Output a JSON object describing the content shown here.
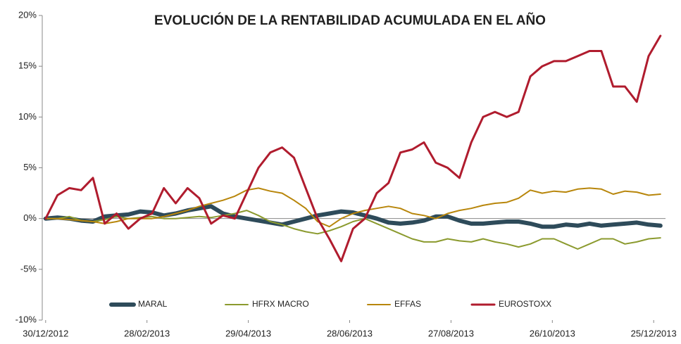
{
  "chart_data": {
    "type": "line",
    "title": "EVOLUCIÓN DE LA RENTABILIDAD ACUMULADA EN EL AÑO",
    "x": [
      "2012-12-30",
      "2013-01-06",
      "2013-01-13",
      "2013-01-20",
      "2013-01-27",
      "2013-02-03",
      "2013-02-10",
      "2013-02-17",
      "2013-02-24",
      "2013-03-03",
      "2013-03-10",
      "2013-03-17",
      "2013-03-24",
      "2013-03-31",
      "2013-04-07",
      "2013-04-14",
      "2013-04-21",
      "2013-04-28",
      "2013-05-05",
      "2013-05-12",
      "2013-05-19",
      "2013-05-26",
      "2013-06-02",
      "2013-06-09",
      "2013-06-16",
      "2013-06-23",
      "2013-06-30",
      "2013-07-07",
      "2013-07-14",
      "2013-07-21",
      "2013-07-28",
      "2013-08-04",
      "2013-08-11",
      "2013-08-18",
      "2013-08-25",
      "2013-09-01",
      "2013-09-08",
      "2013-09-15",
      "2013-09-22",
      "2013-09-29",
      "2013-10-06",
      "2013-10-13",
      "2013-10-20",
      "2013-10-27",
      "2013-11-03",
      "2013-11-10",
      "2013-11-17",
      "2013-11-24",
      "2013-12-01",
      "2013-12-08",
      "2013-12-15",
      "2013-12-22",
      "2013-12-29"
    ],
    "series": [
      {
        "name": "MARAL",
        "color": "#2e4b5a",
        "width": 6,
        "values": [
          0,
          0.1,
          0,
          -0.2,
          -0.3,
          0.2,
          0.3,
          0.4,
          0.7,
          0.6,
          0.3,
          0.5,
          0.8,
          1.0,
          1.2,
          0.5,
          0.2,
          0,
          -0.2,
          -0.4,
          -0.6,
          -0.3,
          0,
          0.3,
          0.5,
          0.7,
          0.6,
          0.3,
          0,
          -0.4,
          -0.5,
          -0.4,
          -0.2,
          0.2,
          0.2,
          -0.2,
          -0.5,
          -0.5,
          -0.4,
          -0.3,
          -0.3,
          -0.5,
          -0.8,
          -0.8,
          -0.6,
          -0.7,
          -0.5,
          -0.7,
          -0.6,
          -0.5,
          -0.4,
          -0.6,
          -0.7
        ]
      },
      {
        "name": "HFRX MACRO",
        "color": "#8b9a2e",
        "width": 2,
        "values": [
          0,
          0,
          0.2,
          -0.2,
          -0.3,
          -0.1,
          0.2,
          0,
          0.1,
          0.2,
          0,
          0,
          0.1,
          0.2,
          0.1,
          0.3,
          0.5,
          0.8,
          0.3,
          -0.3,
          -0.6,
          -1.0,
          -1.3,
          -1.5,
          -1.2,
          -0.8,
          -0.3,
          0,
          -0.5,
          -1.0,
          -1.5,
          -2.0,
          -2.3,
          -2.3,
          -2.0,
          -2.2,
          -2.3,
          -2.0,
          -2.3,
          -2.5,
          -2.8,
          -2.5,
          -2.0,
          -2.0,
          -2.5,
          -3.0,
          -2.5,
          -2.0,
          -2.0,
          -2.5,
          -2.3,
          -2.0,
          -1.9
        ]
      },
      {
        "name": "EFFAS",
        "color": "#b8860b",
        "width": 2,
        "values": [
          0,
          0,
          -0.1,
          -0.2,
          -0.3,
          -0.5,
          -0.3,
          0,
          0,
          0,
          0.2,
          0.5,
          0.8,
          1.2,
          1.5,
          1.8,
          2.2,
          2.8,
          3.0,
          2.7,
          2.5,
          1.8,
          1.0,
          -0.3,
          -0.8,
          0,
          0.5,
          0.8,
          1.0,
          1.2,
          1.0,
          0.5,
          0.3,
          0,
          0.5,
          0.8,
          1.0,
          1.3,
          1.5,
          1.6,
          2.0,
          2.8,
          2.5,
          2.7,
          2.6,
          2.9,
          3.0,
          2.9,
          2.4,
          2.7,
          2.6,
          2.3,
          2.4
        ]
      },
      {
        "name": "EUROSTOXX",
        "color": "#b01c2e",
        "width": 3,
        "values": [
          0,
          2.3,
          3.0,
          2.8,
          4.0,
          -0.5,
          0.5,
          -1.0,
          0.0,
          0.5,
          3.0,
          1.5,
          3.0,
          2.0,
          -0.5,
          0.3,
          0.0,
          2.5,
          5.0,
          6.5,
          7.0,
          6.0,
          3.0,
          0.0,
          -2.0,
          -4.2,
          -1.0,
          0.0,
          2.5,
          3.5,
          6.5,
          6.8,
          7.5,
          5.5,
          5.0,
          4.0,
          7.5,
          10.0,
          10.5,
          10.0,
          10.5,
          14.0,
          15.0,
          15.5,
          15.5,
          16.0,
          16.5,
          16.5,
          13.0,
          13.0,
          11.5,
          16.0,
          18.0
        ]
      }
    ],
    "xlim": [
      "2012-12-28",
      "2014-01-01"
    ],
    "xticks": [
      {
        "value": "2012-12-30",
        "label": "30/12/2012"
      },
      {
        "value": "2013-02-28",
        "label": "28/02/2013"
      },
      {
        "value": "2013-04-29",
        "label": "29/04/2013"
      },
      {
        "value": "2013-06-28",
        "label": "28/06/2013"
      },
      {
        "value": "2013-08-27",
        "label": "27/08/2013"
      },
      {
        "value": "2013-10-26",
        "label": "26/10/2013"
      },
      {
        "value": "2013-12-25",
        "label": "25/12/2013"
      }
    ],
    "ylim": [
      -10,
      20
    ],
    "yticks": [
      {
        "value": -10,
        "label": "-10%"
      },
      {
        "value": -5,
        "label": "-5%"
      },
      {
        "value": 0,
        "label": "0%"
      },
      {
        "value": 5,
        "label": "5%"
      },
      {
        "value": 10,
        "label": "10%"
      },
      {
        "value": 15,
        "label": "15%"
      },
      {
        "value": 20,
        "label": "20%"
      }
    ],
    "legend": "bottom"
  }
}
